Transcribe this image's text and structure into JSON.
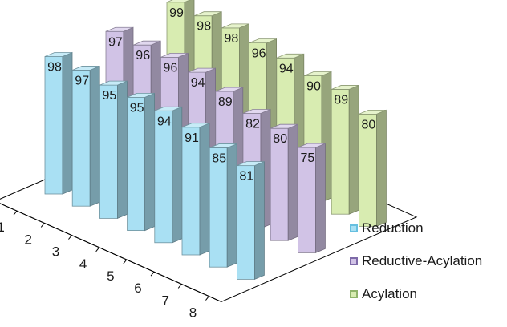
{
  "chart_data": {
    "type": "bar",
    "categories": [
      "1",
      "2",
      "3",
      "4",
      "5",
      "6",
      "7",
      "8"
    ],
    "series": [
      {
        "name": "Reduction",
        "values": [
          98,
          97,
          95,
          95,
          94,
          91,
          85,
          81
        ],
        "color": "#a9e0f3"
      },
      {
        "name": "Reductive-Acylation",
        "values": [
          97,
          96,
          96,
          94,
          89,
          82,
          80,
          75
        ],
        "color": "#d1c3e6"
      },
      {
        "name": "Acylation",
        "values": [
          99,
          98,
          98,
          96,
          94,
          90,
          89,
          80
        ],
        "color": "#d8ecb1"
      }
    ],
    "title": "",
    "xlabel": "",
    "ylabel": "",
    "ylim": [
      0,
      100
    ],
    "legend_position": "bottom-right",
    "grid": false
  }
}
